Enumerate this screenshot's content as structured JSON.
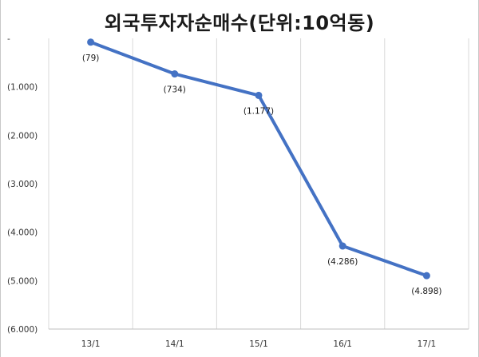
{
  "chart_data": {
    "type": "line",
    "title": "외국투자자순매수(단위:10억동)",
    "categories": [
      "13/1",
      "14/1",
      "15/1",
      "16/1",
      "17/1"
    ],
    "series": [
      {
        "values": [
          -79,
          -734,
          -1177,
          -4286,
          -4898
        ]
      }
    ],
    "data_labels": [
      "(79)",
      "(734)",
      "(1.177)",
      "(4.286)",
      "(4.898)"
    ],
    "y_ticks": [
      0,
      -1000,
      -2000,
      -3000,
      -4000,
      -5000,
      -6000
    ],
    "y_tick_labels": [
      "-",
      "(1.000)",
      "(2.000)",
      "(3.000)",
      "(4.000)",
      "(5.000)",
      "(6.000)"
    ],
    "ylim": [
      -6000,
      0
    ],
    "grid": "vertical",
    "line_color": "#4472c4",
    "grid_color": "#d9d9d9"
  }
}
